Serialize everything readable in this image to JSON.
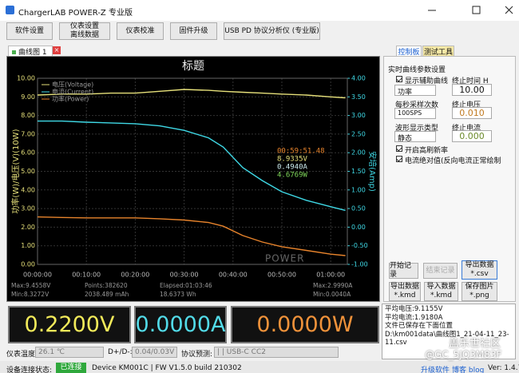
{
  "window": {
    "title": "ChargerLAB POWER-Z 专业版"
  },
  "toolbar": [
    [
      "软件设置"
    ],
    [
      "仪表设置",
      "离线数据"
    ],
    [
      "仪表校准"
    ],
    [
      "固件升级"
    ],
    [
      "USB PD 协议分析仪 (专业版)"
    ]
  ],
  "tabs": {
    "chart_tab": "曲线图 1",
    "panel_tabs": [
      "控制板",
      "测试工具"
    ]
  },
  "chart_data": {
    "type": "line",
    "title": "标题",
    "x": [
      0,
      5,
      10,
      15,
      20,
      25,
      30,
      35,
      38,
      42,
      46,
      50,
      55,
      60,
      63
    ],
    "xlim": [
      0,
      63.4
    ],
    "xticks": [
      {
        "value": 0,
        "label": "00:00:00"
      },
      {
        "value": 10,
        "label": "00:10:00"
      },
      {
        "value": 20,
        "label": "00:20:00"
      },
      {
        "value": 30,
        "label": "00:30:00"
      },
      {
        "value": 40,
        "label": "00:40:00"
      },
      {
        "value": 50,
        "label": "00:50:00"
      },
      {
        "value": 60,
        "label": "01:00:00"
      }
    ],
    "ylim": [
      0,
      10
    ],
    "yticks": [
      {
        "value": 0,
        "label": "0.00"
      },
      {
        "value": 1,
        "label": "1.00"
      },
      {
        "value": 2,
        "label": "2.00"
      },
      {
        "value": 3,
        "label": "3.00"
      },
      {
        "value": 4,
        "label": "4.00"
      },
      {
        "value": 5,
        "label": "5.00"
      },
      {
        "value": 6,
        "label": "6.00"
      },
      {
        "value": 7,
        "label": "7.00"
      },
      {
        "value": 8,
        "label": "8.00"
      },
      {
        "value": 9,
        "label": "9.00"
      },
      {
        "value": 10,
        "label": "10.00"
      }
    ],
    "y2lim": [
      -1,
      4
    ],
    "y2ticks": [
      {
        "value": -1,
        "label": "-1.00"
      },
      {
        "value": -0.5,
        "label": "-0.50"
      },
      {
        "value": 0,
        "label": "0.00"
      },
      {
        "value": 0.5,
        "label": "0.50"
      },
      {
        "value": 1,
        "label": "1.00"
      },
      {
        "value": 1.5,
        "label": "1.50"
      },
      {
        "value": 2,
        "label": "2.00"
      },
      {
        "value": 2.5,
        "label": "2.50"
      },
      {
        "value": 3,
        "label": "3.00"
      },
      {
        "value": 3.5,
        "label": "3.50"
      },
      {
        "value": 4,
        "label": "4.00"
      }
    ],
    "ylabel": "功率(W)/电压(V)(10W)",
    "y2label": "安培(Amp)",
    "grid": true,
    "series": [
      {
        "name": "电压(Voltage)",
        "color": "#e6e07a",
        "values": [
          9.1,
          9.15,
          9.15,
          9.2,
          9.2,
          9.3,
          9.4,
          9.35,
          9.3,
          9.25,
          9.2,
          9.15,
          9.1,
          9.0,
          8.95
        ]
      },
      {
        "name": "电流(Current)",
        "color": "#3fd9e6",
        "axis": "y2",
        "values": [
          2.85,
          2.85,
          2.82,
          2.8,
          2.78,
          2.72,
          2.6,
          2.4,
          2.15,
          1.6,
          1.25,
          0.95,
          0.72,
          0.55,
          0.45
        ]
      },
      {
        "name": "功率(Power)",
        "color": "#e8842c",
        "values": [
          2.55,
          2.52,
          2.5,
          2.5,
          2.5,
          2.45,
          2.38,
          2.25,
          2.05,
          1.55,
          1.2,
          0.95,
          0.75,
          0.55,
          0.47
        ]
      }
    ],
    "annotations": [
      {
        "text": "00:59:51.48",
        "color": "#e8842c"
      },
      {
        "text": "8.9335V",
        "color": "#e6e07a"
      },
      {
        "text": "0.4940A",
        "color": "#cfeff2"
      },
      {
        "text": "4.6769W",
        "color": "#7fd65a"
      }
    ],
    "logo": "POWER"
  },
  "chart_stats": [
    [
      "Max:9.4558V",
      "Points:382620",
      "Elapsed:01:03:46",
      "Max:2.9990A"
    ],
    [
      "Min:8.3272V",
      "2038.489 mAh",
      "18.6373 Wh",
      "Min:0.0040A"
    ]
  ],
  "readouts": [
    {
      "text": "0.2200V",
      "color": "#f2ea5a"
    },
    {
      "text": "0.0000A",
      "color": "#52dbe8"
    },
    {
      "text": "0.0000W",
      "color": "#f0923a"
    }
  ],
  "info_row": {
    "temp_label": "仪表温度:",
    "temp": "26.1 ℃",
    "dpdm_label": "D+/D-:",
    "dpdm": "0.04/0.03V",
    "protocol_label": "协议预测:",
    "protocol": "| | USB-C CC2"
  },
  "status": {
    "label": "设备连接状态:",
    "state": "已连接",
    "device": "Device KM001C | FW V1.5.0 build 210302",
    "links": [
      "升级软件",
      "博客 blog"
    ],
    "version": "Ver: 1.4.7"
  },
  "side_panel": {
    "group": "实时曲线参数设置",
    "aux_curve": "显示辅助曲线",
    "aux_select": "功率",
    "end_time_label": "终止时间 H",
    "end_time": "10.00",
    "sps_label": "每秒采样次数",
    "sps": "100SPS",
    "end_voltage_label": "终止电压",
    "end_voltage": "0.010",
    "wave_label": "波形显示类型",
    "wave": "静态",
    "end_current_label": "终止电流",
    "end_current": "0.000",
    "high_refresh": "开启高刷新率",
    "abs_current": "电流绝对值(反向电流正常绘制",
    "buttons": [
      [
        "开始记录"
      ],
      [
        "结束记录"
      ],
      [
        "导出数据",
        "*.csv"
      ],
      [
        "导出数据",
        "*.kmd"
      ],
      [
        "导入数据",
        "*.kmd"
      ],
      [
        "保存图片",
        "*.png"
      ]
    ]
  },
  "log": [
    "平均电压:9.1155V",
    "平均电流:1.9180A",
    "文件已保存在下面位置",
    "D:\\km001data\\曲线图1_21-04-11_23-",
    "11.csv"
  ],
  "watermark": [
    "盖乐世社区",
    "@GC_5JQ3M83F"
  ]
}
